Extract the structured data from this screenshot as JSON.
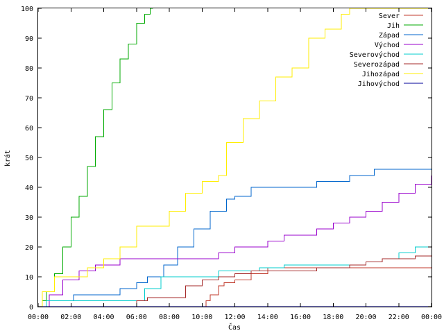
{
  "chart_data": {
    "type": "line",
    "xlabel": "Čas",
    "ylabel": "krát",
    "x_tick_labels": [
      "00:00",
      "02:00",
      "04:00",
      "06:00",
      "08:00",
      "10:00",
      "12:00",
      "14:00",
      "16:00",
      "18:00",
      "20:00",
      "22:00",
      "00:00"
    ],
    "y_tick_labels": [
      "0",
      "10",
      "20",
      "30",
      "40",
      "50",
      "60",
      "70",
      "80",
      "90",
      "100"
    ],
    "xlim": [
      "00:00",
      "24:00"
    ],
    "ylim": [
      0,
      100
    ],
    "grid": false,
    "legend_position": "top-right",
    "series": [
      {
        "name": "Sever",
        "color": "#c0392b",
        "x": [
          "00:00",
          "10:00",
          "10:15",
          "10:30",
          "11:00",
          "11:20",
          "12:00",
          "13:00",
          "14:00",
          "15:00",
          "17:00",
          "24:00"
        ],
        "values": [
          0,
          0,
          2,
          4,
          7,
          8,
          9,
          11,
          13,
          13,
          13,
          13
        ]
      },
      {
        "name": "Jih",
        "color": "#00aa00",
        "x": [
          "00:00",
          "00:15",
          "00:30",
          "01:00",
          "01:30",
          "02:00",
          "02:30",
          "03:00",
          "03:30",
          "04:00",
          "04:30",
          "05:00",
          "05:30",
          "06:00",
          "06:30",
          "06:50",
          "07:00"
        ],
        "values": [
          0,
          2,
          5,
          11,
          20,
          30,
          37,
          47,
          57,
          66,
          75,
          83,
          88,
          95,
          98,
          100,
          100
        ]
      },
      {
        "name": "Západ",
        "color": "#0066cc",
        "x": [
          "00:00",
          "00:30",
          "02:10",
          "05:00",
          "06:00",
          "06:40",
          "07:40",
          "08:30",
          "09:30",
          "10:30",
          "11:30",
          "12:00",
          "13:00",
          "15:00",
          "17:00",
          "19:00",
          "20:30",
          "24:00"
        ],
        "values": [
          0,
          2,
          4,
          6,
          8,
          10,
          14,
          20,
          26,
          32,
          36,
          37,
          40,
          40,
          42,
          44,
          46,
          46
        ]
      },
      {
        "name": "Východ",
        "color": "#9900cc",
        "x": [
          "00:00",
          "00:40",
          "01:30",
          "02:30",
          "03:30",
          "05:00",
          "07:00",
          "08:00",
          "10:00",
          "11:00",
          "12:00",
          "14:00",
          "15:00",
          "17:00",
          "18:00",
          "19:00",
          "20:00",
          "21:00",
          "22:00",
          "23:00",
          "24:00"
        ],
        "values": [
          0,
          4,
          9,
          12,
          14,
          16,
          16,
          16,
          16,
          18,
          20,
          22,
          24,
          26,
          28,
          30,
          32,
          35,
          38,
          41,
          44
        ]
      },
      {
        "name": "Severovýchod",
        "color": "#00cccc",
        "x": [
          "00:00",
          "00:30",
          "06:00",
          "06:30",
          "07:30",
          "09:00",
          "11:00",
          "12:00",
          "13:30",
          "15:00",
          "17:00",
          "19:00",
          "20:00",
          "21:00",
          "22:00",
          "23:00",
          "24:00"
        ],
        "values": [
          0,
          2,
          2,
          6,
          10,
          10,
          12,
          12,
          13,
          14,
          14,
          14,
          15,
          16,
          18,
          20,
          20
        ]
      },
      {
        "name": "Severozápad",
        "color": "#a52a2a",
        "x": [
          "00:00",
          "05:30",
          "06:00",
          "06:40",
          "08:30",
          "09:00",
          "10:00",
          "11:00",
          "12:00",
          "13:00",
          "15:00",
          "17:00",
          "19:00",
          "20:00",
          "21:00",
          "22:00",
          "23:00",
          "24:00"
        ],
        "values": [
          0,
          0,
          2,
          3,
          3,
          7,
          9,
          10,
          11,
          12,
          12,
          13,
          14,
          15,
          16,
          16,
          17,
          17
        ]
      },
      {
        "name": "Jihozápad",
        "color": "#ffee00",
        "x": [
          "00:00",
          "00:15",
          "01:00",
          "02:00",
          "03:00",
          "04:00",
          "05:00",
          "06:00",
          "07:00",
          "08:00",
          "09:00",
          "10:00",
          "11:00",
          "11:30",
          "12:30",
          "13:30",
          "14:30",
          "15:30",
          "16:30",
          "17:30",
          "18:30",
          "19:00",
          "24:00"
        ],
        "values": [
          0,
          5,
          10,
          10,
          13,
          16,
          20,
          27,
          27,
          32,
          38,
          42,
          44,
          55,
          63,
          69,
          77,
          80,
          90,
          93,
          98,
          100,
          100
        ]
      },
      {
        "name": "Jihovýchod",
        "color": "#000099",
        "x": [
          "00:00",
          "24:00"
        ],
        "values": [
          0,
          0
        ]
      }
    ]
  }
}
